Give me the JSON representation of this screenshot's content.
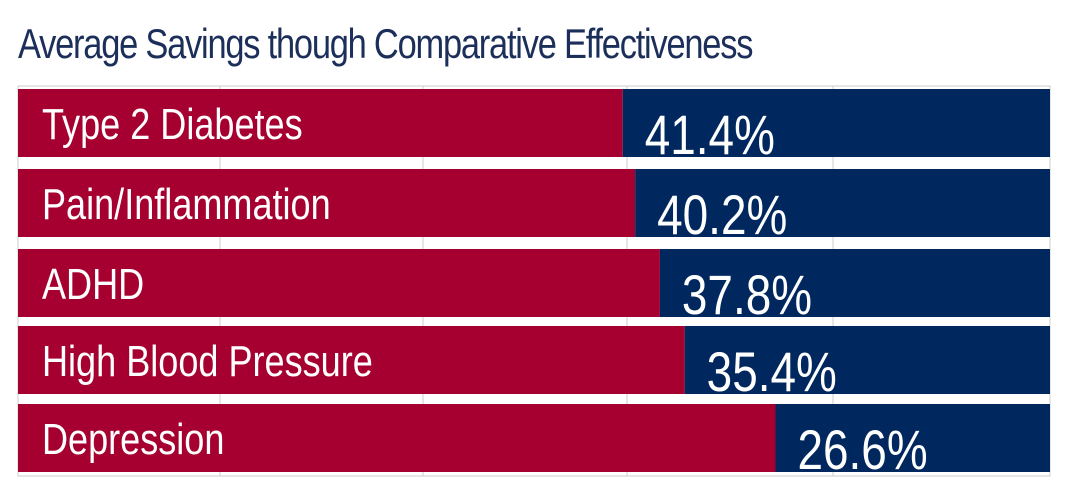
{
  "chart_data": {
    "type": "bar",
    "orientation": "horizontal",
    "title": "Average Savings though Comparative Effectiveness",
    "categories": [
      "Type 2 Diabetes",
      "Pain/Inflammation",
      "ADHD",
      "High Blood Pressure",
      "Depression"
    ],
    "values": [
      41.4,
      40.2,
      37.8,
      35.4,
      26.6
    ],
    "value_labels": [
      "41.4%",
      "40.2%",
      "37.8%",
      "35.4%",
      "26.6%"
    ],
    "xlim": [
      0,
      100
    ],
    "grid": true,
    "colors": {
      "savings": "#00285f",
      "remainder": "#a50030",
      "title": "#1c2f5a",
      "grid": "#cccccc"
    }
  }
}
